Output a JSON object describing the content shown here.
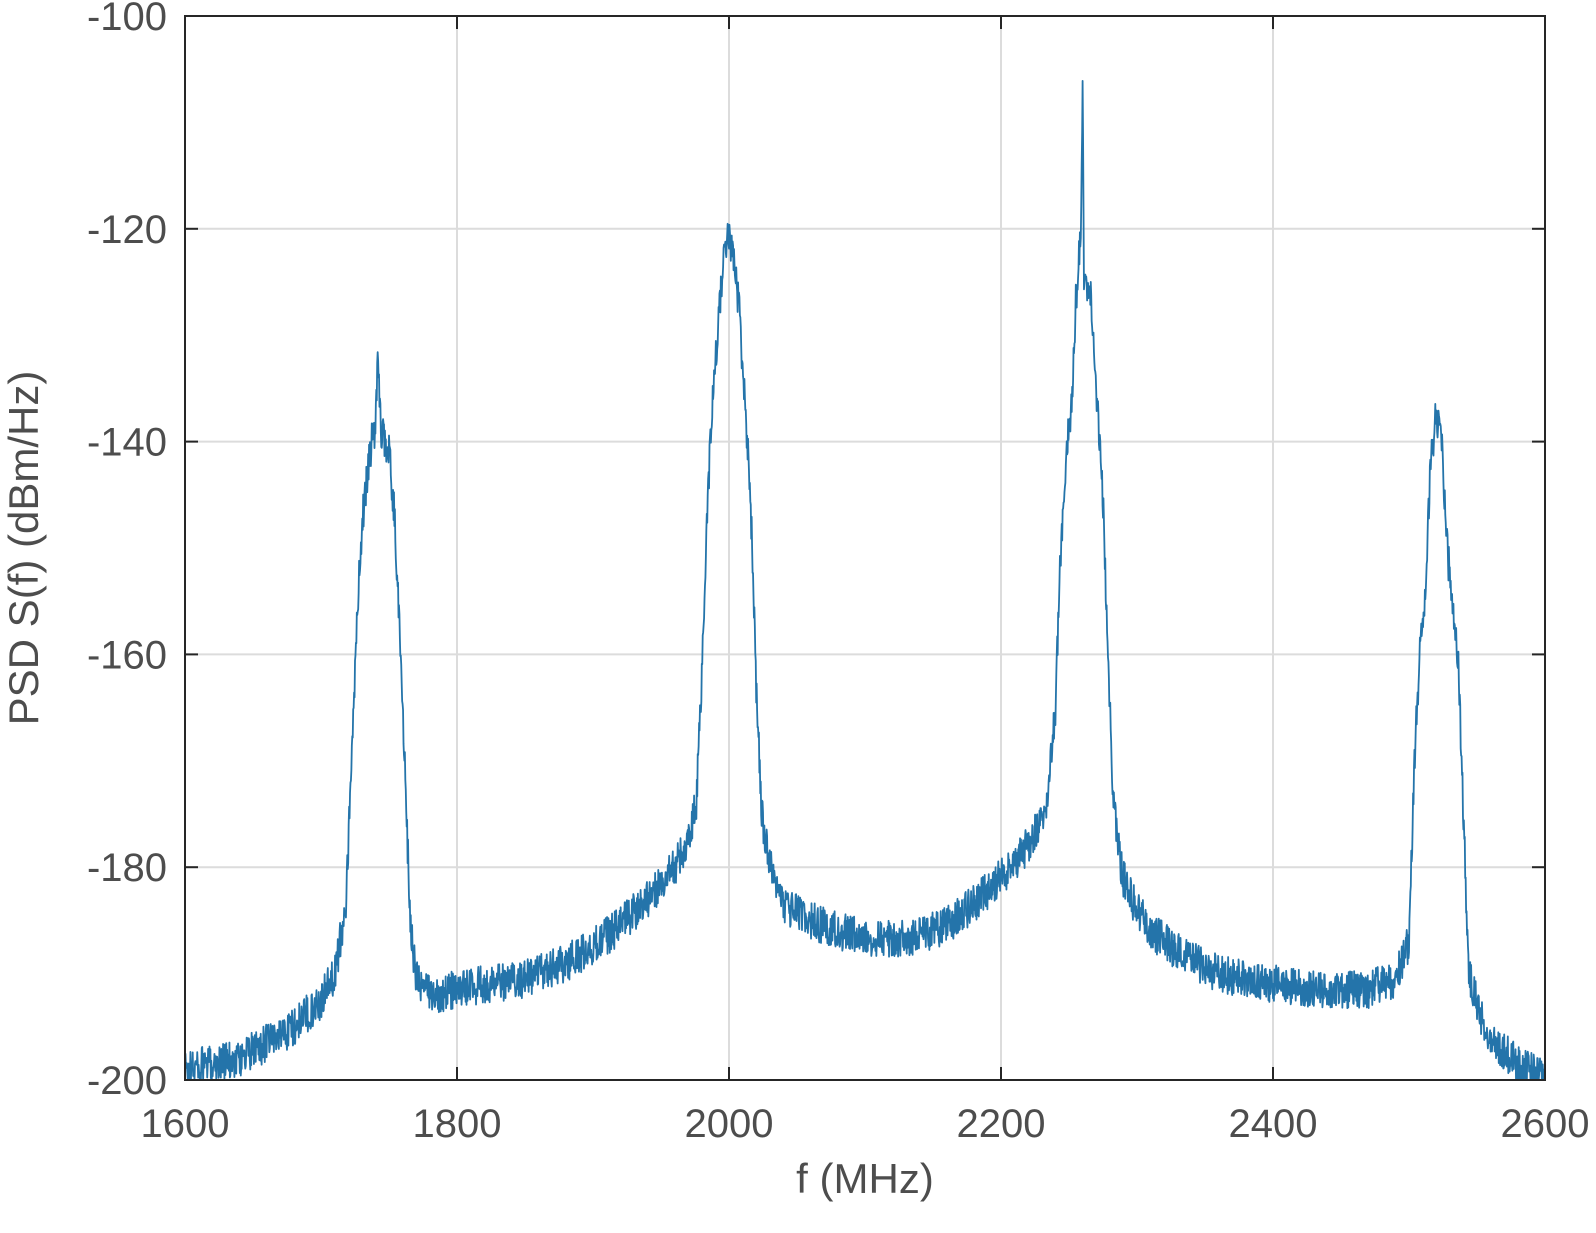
{
  "chart_data": {
    "type": "line",
    "title": "",
    "xlabel": "f (MHz)",
    "ylabel": "PSD S(f) (dBm/Hz)",
    "xlim": [
      1600,
      2600
    ],
    "ylim": [
      -200,
      -100
    ],
    "xticks": [
      1600,
      1800,
      2000,
      2200,
      2400,
      2600
    ],
    "yticks": [
      -200,
      -180,
      -160,
      -140,
      -120,
      -100
    ],
    "xtick_labels": [
      "1600",
      "1800",
      "2000",
      "2200",
      "2400",
      "2600"
    ],
    "ytick_labels": [
      "-200",
      "-180",
      "-160",
      "-140",
      "-120",
      "-100"
    ],
    "grid": true,
    "legend": "none",
    "series": [
      {
        "color": "#2474aa",
        "x": [
          1600,
          1620,
          1640,
          1660,
          1680,
          1700,
          1710,
          1718,
          1722,
          1726,
          1730,
          1734,
          1738,
          1740,
          1742,
          1744,
          1746,
          1750,
          1754,
          1758,
          1762,
          1766,
          1770,
          1780,
          1800,
          1820,
          1850,
          1880,
          1900,
          1920,
          1940,
          1960,
          1970,
          1976,
          1980,
          1984,
          1988,
          1992,
          1996,
          2000,
          2004,
          2008,
          2012,
          2016,
          2020,
          2024,
          2030,
          2040,
          2060,
          2080,
          2100,
          2120,
          2140,
          2160,
          2180,
          2200,
          2220,
          2234,
          2240,
          2244,
          2248,
          2252,
          2255,
          2257,
          2259,
          2260,
          2261,
          2263,
          2266,
          2270,
          2274,
          2278,
          2282,
          2286,
          2290,
          2296,
          2310,
          2330,
          2360,
          2400,
          2440,
          2470,
          2490,
          2500,
          2504,
          2508,
          2512,
          2516,
          2520,
          2524,
          2528,
          2532,
          2536,
          2540,
          2544,
          2550,
          2560,
          2580,
          2600
        ],
        "y": [
          -199,
          -198.5,
          -198,
          -196.5,
          -195,
          -192.5,
          -190,
          -184,
          -172,
          -158,
          -148,
          -143,
          -139.5,
          -139,
          -131.5,
          -139,
          -139.5,
          -141,
          -147,
          -158,
          -172,
          -186,
          -190.5,
          -192,
          -191.5,
          -191,
          -190.5,
          -189,
          -187.5,
          -185.5,
          -183,
          -180,
          -177.5,
          -174,
          -162,
          -146,
          -136,
          -129,
          -123.5,
          -120.5,
          -123,
          -128.5,
          -137,
          -146,
          -163,
          -175,
          -180,
          -183.5,
          -185,
          -186,
          -186.5,
          -186.7,
          -186.5,
          -185.5,
          -183.5,
          -181,
          -178,
          -174,
          -165,
          -150,
          -141,
          -136,
          -127,
          -123,
          -119,
          -107.5,
          -124,
          -126,
          -126.5,
          -135,
          -142,
          -157,
          -173,
          -178,
          -181,
          -183,
          -186,
          -188,
          -190,
          -191,
          -191.5,
          -191.5,
          -190.5,
          -187,
          -170,
          -160,
          -154,
          -142,
          -137.5,
          -140,
          -150,
          -155,
          -160,
          -175,
          -190,
          -193,
          -196,
          -198.5,
          -199.5
        ]
      }
    ]
  }
}
